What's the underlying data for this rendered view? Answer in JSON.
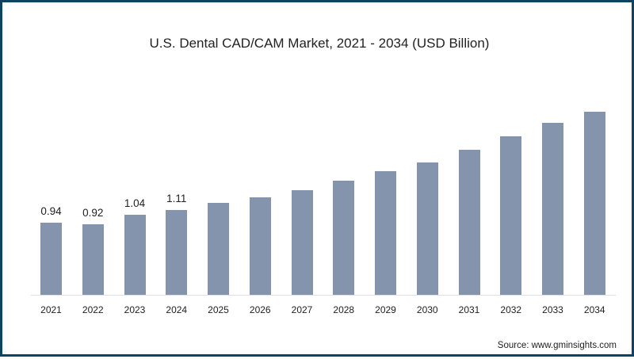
{
  "title": "U.S. Dental CAD/CAM Market, 2021 - 2034 (USD Billion)",
  "source": "Source: www.gminsights.com",
  "colors": {
    "bar": "#8494ad",
    "border": "#0e4460",
    "baseline": "#dde1e6"
  },
  "chart_data": {
    "type": "bar",
    "title": "U.S. Dental CAD/CAM Market, 2021 - 2034 (USD Billion)",
    "xlabel": "",
    "ylabel": "USD Billion",
    "categories": [
      "2021",
      "2022",
      "2023",
      "2024",
      "2025",
      "2026",
      "2027",
      "2028",
      "2029",
      "2030",
      "2031",
      "2032",
      "2033",
      "2034"
    ],
    "values": [
      0.94,
      0.92,
      1.04,
      1.11,
      1.2,
      1.27,
      1.36,
      1.49,
      1.61,
      1.73,
      1.89,
      2.07,
      2.24,
      2.39
    ],
    "data_labels": [
      "0.94",
      "0.92",
      "1.04",
      "1.11",
      "",
      "",
      "",
      "",
      "",
      "",
      "",
      "",
      "",
      ""
    ],
    "ylim": [
      0,
      2.5
    ],
    "grid": false,
    "legend": null,
    "annotations": [
      "Source: www.gminsights.com"
    ]
  }
}
